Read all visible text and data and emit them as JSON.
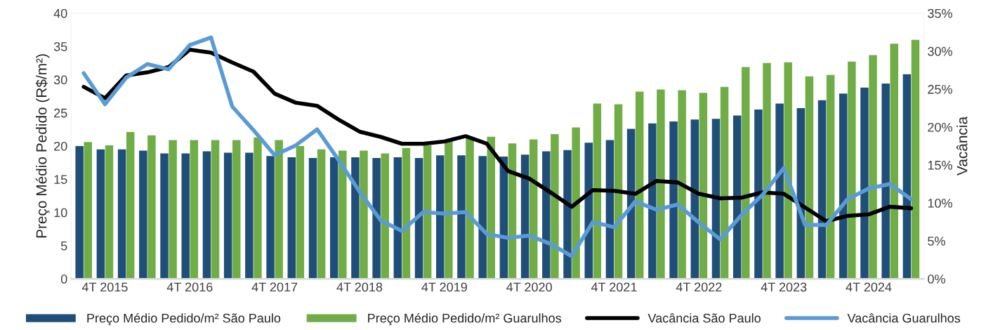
{
  "chart_data": {
    "type": "bar",
    "ylabel": "Preço Médio Pedido (R$/m²)",
    "y2label": "Vacância",
    "categories": [
      null,
      "4T 2015",
      null,
      null,
      null,
      "4T 2016",
      null,
      null,
      null,
      "4T 2017",
      null,
      null,
      null,
      "4T 2018",
      null,
      null,
      null,
      "4T 2019",
      null,
      null,
      null,
      "4T 2020",
      null,
      null,
      null,
      "4T 2021",
      null,
      null,
      null,
      "4T 2022",
      null,
      null,
      null,
      "4T 2023",
      null,
      null,
      null,
      "4T 2024",
      null,
      null
    ],
    "series": [
      {
        "name": "Preço Médio Pedido/m² São Paulo",
        "color": "#1f4e79",
        "values": [
          20.0,
          19.5,
          19.5,
          19.3,
          18.9,
          18.9,
          19.2,
          19.0,
          19.0,
          18.5,
          18.3,
          18.2,
          18.3,
          18.3,
          18.2,
          18.3,
          18.2,
          18.6,
          18.6,
          18.5,
          18.4,
          18.7,
          19.2,
          19.4,
          20.5,
          20.9,
          22.6,
          23.4,
          23.7,
          24.0,
          24.1,
          24.6,
          25.5,
          26.4,
          25.7,
          26.9,
          27.9,
          28.8,
          29.4,
          30.8
        ]
      },
      {
        "name": "Preço Médio Pedido/m² Guarulhos",
        "color": "#70ad47",
        "values": [
          20.6,
          20.1,
          22.1,
          21.6,
          20.9,
          20.9,
          20.9,
          20.9,
          21.3,
          20.9,
          20.0,
          19.5,
          19.3,
          19.3,
          18.9,
          19.7,
          20.1,
          20.8,
          21.3,
          21.4,
          20.4,
          21.0,
          21.8,
          22.8,
          26.4,
          26.3,
          28.2,
          28.5,
          28.4,
          28.0,
          28.9,
          31.9,
          32.5,
          32.6,
          30.5,
          30.7,
          32.7,
          33.7,
          35.4,
          36.0
        ]
      },
      {
        "name": "Vacância São Paulo",
        "type": "line",
        "axis": "y2",
        "color": "#000000",
        "values": [
          25.3,
          23.8,
          26.8,
          27.2,
          27.9,
          30.2,
          29.8,
          28.5,
          27.3,
          24.4,
          23.2,
          22.8,
          21.0,
          19.4,
          18.7,
          17.8,
          17.8,
          18.1,
          18.8,
          17.8,
          14.2,
          13.2,
          11.4,
          9.5,
          11.7,
          11.6,
          11.2,
          12.9,
          12.7,
          11.2,
          10.6,
          10.7,
          11.4,
          11.2,
          9.4,
          7.6,
          8.3,
          8.5,
          9.5,
          9.3
        ]
      },
      {
        "name": "Vacância Guarulhos",
        "type": "line",
        "axis": "y2",
        "color": "#5b9bd5",
        "values": [
          27.1,
          23.0,
          26.5,
          28.3,
          27.6,
          30.8,
          31.8,
          22.7,
          19.6,
          16.3,
          17.6,
          19.7,
          15.7,
          11.5,
          7.7,
          6.3,
          8.8,
          8.6,
          8.8,
          5.9,
          5.4,
          5.7,
          4.6,
          3.0,
          7.5,
          6.8,
          10.2,
          9.1,
          9.8,
          7.4,
          5.2,
          8.4,
          11.1,
          14.6,
          7.1,
          7.1,
          10.5,
          11.9,
          12.5,
          10.5
        ]
      }
    ],
    "ylim": [
      0,
      40
    ],
    "yticks": [
      0,
      5,
      10,
      15,
      20,
      25,
      30,
      35,
      40
    ],
    "y2lim": [
      0,
      35
    ],
    "y2ticks": [
      {
        "value": 0,
        "label": "0%"
      },
      {
        "value": 5,
        "label": "5%"
      },
      {
        "value": 10,
        "label": "10%"
      },
      {
        "value": 15,
        "label": "15%"
      },
      {
        "value": 20,
        "label": "20%"
      },
      {
        "value": 25,
        "label": "25%"
      },
      {
        "value": 30,
        "label": "30%"
      },
      {
        "value": 35,
        "label": "35%"
      }
    ],
    "grid": false,
    "legend": "bottom",
    "line_style": "solid",
    "marker": "none"
  }
}
